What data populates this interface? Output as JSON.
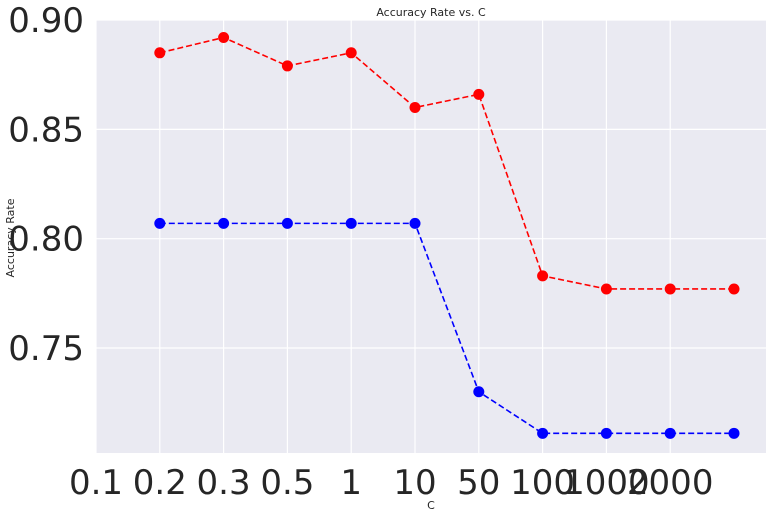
{
  "chart_data": {
    "type": "line",
    "title": "Accuracy Rate vs. C",
    "xlabel": "C",
    "ylabel": "Accuracy Rate",
    "x_tick_labels": [
      "0.1",
      "0.2",
      "0.3",
      "0.5",
      "1",
      "10",
      "50",
      "100",
      "1000",
      "2000"
    ],
    "y_ticks": [
      0.75,
      0.8,
      0.85,
      0.9
    ],
    "y_tick_labels": [
      "0.75",
      "0.80",
      "0.85",
      "0.90"
    ],
    "ylim": [
      0.702,
      0.9
    ],
    "grid": true,
    "series": [
      {
        "color": "#ff0000",
        "style": "dashed-with-circle-markers",
        "x_index": [
          1,
          2,
          3,
          4,
          5,
          6,
          7,
          8,
          9,
          10
        ],
        "values": [
          0.885,
          0.892,
          0.879,
          0.885,
          0.86,
          0.866,
          0.783,
          0.777,
          0.777,
          0.777
        ]
      },
      {
        "color": "#0000ff",
        "style": "dashed-with-circle-markers",
        "x_index": [
          1,
          2,
          3,
          4,
          5,
          6,
          7,
          8,
          9,
          10
        ],
        "values": [
          0.807,
          0.807,
          0.807,
          0.807,
          0.807,
          0.73,
          0.711,
          0.711,
          0.711,
          0.711
        ]
      }
    ],
    "background_color": "#eaeaf2",
    "grid_color": "#ffffff"
  }
}
